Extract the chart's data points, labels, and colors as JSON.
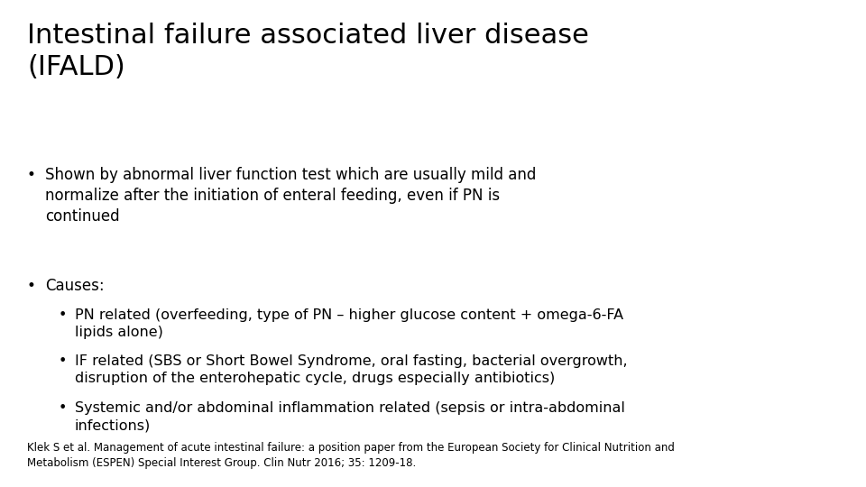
{
  "title": "Intestinal failure associated liver disease\n(IFALD)",
  "background_color": "#ffffff",
  "text_color": "#000000",
  "title_fontsize": 22,
  "body_fontsize": 12,
  "sub_fontsize": 11.5,
  "footnote_fontsize": 8.5,
  "bullet1_text": "Shown by abnormal liver function test which are usually mild and\nnormalize after the initiation of enteral feeding, even if PN is\ncontinued",
  "bullet2_text": "Causes:",
  "sub_bullet1": "PN related (overfeeding, type of PN – higher glucose content + omega-6-FA\nlipids alone)",
  "sub_bullet2": "IF related (SBS or Short Bowel Syndrome, oral fasting, bacterial overgrowth,\ndisruption of the enterohepatic cycle, drugs especially antibiotics)",
  "sub_bullet3": "Systemic and/or abdominal inflammation related (sepsis or intra-abdominal\ninfections)",
  "footnote": "Klek S et al. Management of acute intestinal failure: a position paper from the European Society for Clinical Nutrition and\nMetabolism (ESPEN) Special Interest Group. Clin Nutr 2016; 35: 1209-18.",
  "font_family": "DejaVu Sans"
}
